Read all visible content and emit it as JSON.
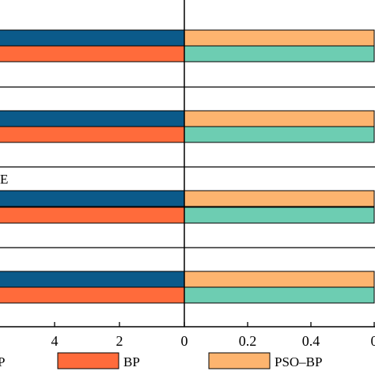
{
  "chart_data": {
    "type": "bar",
    "orientation": "horizontal",
    "row_labels": [
      "",
      "E",
      "",
      ""
    ],
    "left_panel": {
      "xticks": [
        4,
        2,
        0
      ],
      "series": [
        {
          "name": "",
          "color": "#0b5a8a",
          "values": [
            5.7,
            5.7,
            5.7,
            5.7
          ]
        },
        {
          "name": "BP",
          "color": "#ff6b3b",
          "values": [
            5.7,
            5.7,
            5.7,
            5.7
          ]
        }
      ]
    },
    "right_panel": {
      "xticks": [
        "0",
        "0.2",
        "0.4",
        "0"
      ],
      "series": [
        {
          "name": "PSO–BP",
          "color": "#fdb46f",
          "values": [
            0.6,
            0.6,
            0.6,
            0.6
          ]
        },
        {
          "name": "",
          "color": "#6dcdb2",
          "values": [
            0.6,
            0.6,
            0.6,
            0.6
          ]
        }
      ]
    },
    "legend": {
      "placement": "bottom",
      "entries": [
        {
          "label": "P",
          "color": ""
        },
        {
          "label": "BP",
          "color": "#ff6b3b"
        },
        {
          "label": "PSO–BP",
          "color": "#fdb46f"
        }
      ]
    }
  }
}
